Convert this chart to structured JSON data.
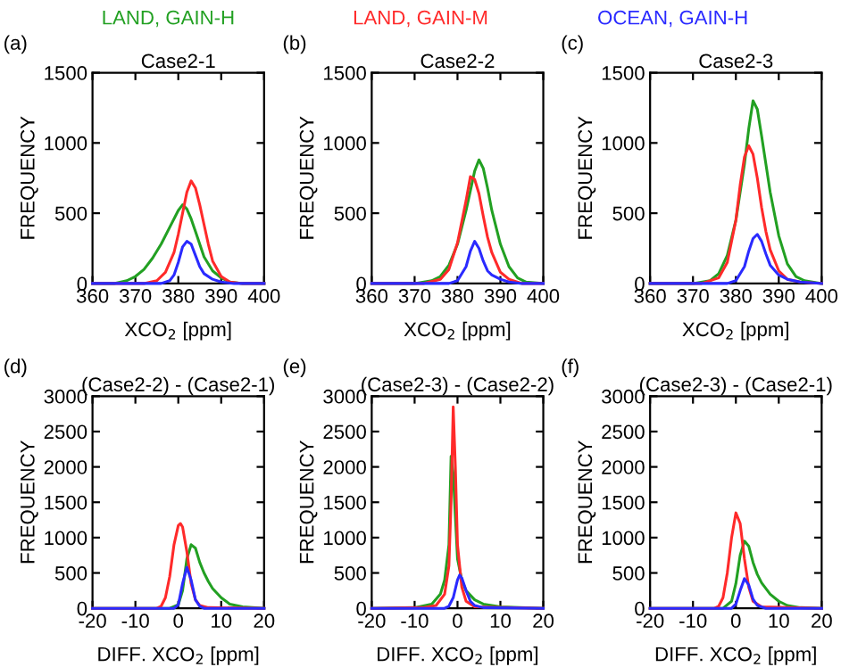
{
  "chart_data": [
    {
      "type": "line",
      "title": "Case2-1",
      "xlabel": "XCO$_{2}$ [ppm]",
      "ylabel": "FREQUENCY",
      "annotations": [
        "(a)"
      ],
      "legend": "top",
      "xlim": [
        360,
        400
      ],
      "ylim": [
        0,
        1500
      ],
      "xticks": [
        360,
        370,
        380,
        390,
        400
      ],
      "yticks": [
        0,
        500,
        1000,
        1500
      ],
      "grid": false,
      "series": [
        {
          "name": "LAND, GAIN-H",
          "color": "#22a022",
          "x": [
            360,
            365,
            368,
            370,
            372,
            374,
            376,
            378,
            380,
            381,
            382,
            383,
            384,
            385,
            386,
            388,
            390,
            392,
            395,
            400
          ],
          "values": [
            0,
            0,
            20,
            50,
            100,
            180,
            280,
            400,
            520,
            560,
            530,
            460,
            370,
            280,
            190,
            90,
            40,
            10,
            0,
            0
          ]
        },
        {
          "name": "LAND, GAIN-M",
          "color": "#ff2a2a",
          "x": [
            360,
            372,
            375,
            377,
            379,
            380,
            381,
            382,
            383,
            384,
            385,
            386,
            387,
            388,
            390,
            392,
            395,
            400
          ],
          "values": [
            0,
            0,
            20,
            80,
            220,
            350,
            500,
            650,
            730,
            680,
            560,
            420,
            280,
            160,
            50,
            10,
            0,
            0
          ]
        },
        {
          "name": "OCEAN, GAIN-H",
          "color": "#2a2aff",
          "x": [
            360,
            376,
            378,
            379,
            380,
            381,
            382,
            383,
            384,
            385,
            386,
            388,
            390,
            393,
            400
          ],
          "values": [
            0,
            0,
            20,
            60,
            150,
            260,
            300,
            280,
            200,
            120,
            70,
            30,
            10,
            0,
            0
          ]
        }
      ]
    },
    {
      "type": "line",
      "title": "Case2-2",
      "xlabel": "XCO$_{2}$ [ppm]",
      "ylabel": "FREQUENCY",
      "annotations": [
        "(b)"
      ],
      "xlim": [
        360,
        400
      ],
      "ylim": [
        0,
        1500
      ],
      "xticks": [
        360,
        370,
        380,
        390,
        400
      ],
      "yticks": [
        0,
        500,
        1000,
        1500
      ],
      "grid": false,
      "series": [
        {
          "color": "#22a022",
          "x": [
            360,
            370,
            374,
            376,
            378,
            380,
            382,
            384,
            385,
            386,
            387,
            388,
            390,
            392,
            394,
            396,
            400
          ],
          "values": [
            0,
            0,
            20,
            50,
            130,
            280,
            520,
            800,
            880,
            820,
            680,
            520,
            280,
            120,
            40,
            10,
            0
          ]
        },
        {
          "color": "#ff2a2a",
          "x": [
            360,
            372,
            376,
            378,
            380,
            382,
            383,
            384,
            385,
            386,
            387,
            388,
            390,
            392,
            395,
            400
          ],
          "values": [
            0,
            0,
            30,
            100,
            290,
            590,
            760,
            740,
            640,
            480,
            330,
            220,
            80,
            30,
            0,
            0
          ]
        },
        {
          "color": "#2a2aff",
          "x": [
            360,
            378,
            380,
            382,
            383,
            384,
            385,
            386,
            387,
            388,
            390,
            392,
            395,
            400
          ],
          "values": [
            0,
            0,
            20,
            120,
            230,
            300,
            250,
            160,
            90,
            60,
            30,
            10,
            0,
            0
          ]
        }
      ]
    },
    {
      "type": "line",
      "title": "Case2-3",
      "xlabel": "XCO$_{2}$ [ppm]",
      "ylabel": "FREQUENCY",
      "annotations": [
        "(c)"
      ],
      "xlim": [
        360,
        400
      ],
      "ylim": [
        0,
        1500
      ],
      "xticks": [
        360,
        370,
        380,
        390,
        400
      ],
      "yticks": [
        0,
        500,
        1000,
        1500
      ],
      "grid": false,
      "series": [
        {
          "color": "#22a022",
          "x": [
            360,
            370,
            374,
            376,
            378,
            380,
            382,
            383,
            384,
            385,
            386,
            387,
            388,
            390,
            392,
            394,
            396,
            400
          ],
          "values": [
            0,
            0,
            20,
            70,
            200,
            450,
            850,
            1100,
            1300,
            1240,
            1050,
            850,
            650,
            340,
            140,
            50,
            20,
            0
          ]
        },
        {
          "color": "#ff2a2a",
          "x": [
            360,
            372,
            376,
            378,
            380,
            381,
            382,
            383,
            384,
            385,
            386,
            387,
            388,
            390,
            392,
            395,
            400
          ],
          "values": [
            0,
            0,
            40,
            150,
            450,
            700,
            900,
            980,
            920,
            750,
            540,
            370,
            240,
            90,
            30,
            10,
            0
          ]
        },
        {
          "color": "#2a2aff",
          "x": [
            360,
            378,
            380,
            382,
            383,
            384,
            385,
            386,
            387,
            388,
            390,
            392,
            395,
            400
          ],
          "values": [
            0,
            0,
            20,
            120,
            230,
            320,
            350,
            300,
            210,
            130,
            60,
            30,
            10,
            0
          ]
        }
      ]
    },
    {
      "type": "line",
      "title": "(Case2-2) - (Case2-1)",
      "xlabel": "DIFF. XCO$_{2}$ [ppm]",
      "ylabel": "FREQUENCY",
      "annotations": [
        "(d)"
      ],
      "xlim": [
        -20,
        20
      ],
      "ylim": [
        0,
        3000
      ],
      "xticks": [
        -20,
        -10,
        0,
        10,
        20
      ],
      "yticks": [
        0,
        500,
        1000,
        1500,
        2000,
        2500,
        3000
      ],
      "grid": false,
      "series": [
        {
          "color": "#22a022",
          "x": [
            -20,
            -2,
            0,
            1,
            2,
            3,
            4,
            5,
            6,
            7,
            8,
            10,
            12,
            15,
            20
          ],
          "values": [
            0,
            0,
            50,
            250,
            700,
            900,
            850,
            650,
            500,
            380,
            280,
            150,
            60,
            20,
            0
          ]
        },
        {
          "color": "#ff2a2a",
          "x": [
            -20,
            -5,
            -4,
            -3,
            -2,
            -1,
            0,
            0.5,
            1,
            2,
            3,
            4,
            5,
            7,
            20
          ],
          "values": [
            0,
            0,
            30,
            150,
            450,
            900,
            1170,
            1200,
            1150,
            800,
            350,
            120,
            40,
            10,
            0
          ]
        },
        {
          "color": "#2a2aff",
          "x": [
            -20,
            -1,
            0,
            1,
            2,
            3,
            4,
            5,
            6,
            20
          ],
          "values": [
            0,
            0,
            50,
            350,
            580,
            400,
            120,
            30,
            0,
            0
          ]
        }
      ]
    },
    {
      "type": "line",
      "title": "(Case2-3) - (Case2-2)",
      "xlabel": "DIFF. XCO$_{2}$ [ppm]",
      "ylabel": "FREQUENCY",
      "annotations": [
        "(e)"
      ],
      "xlim": [
        -20,
        20
      ],
      "ylim": [
        0,
        3000
      ],
      "xticks": [
        -20,
        -10,
        0,
        10,
        20
      ],
      "yticks": [
        0,
        500,
        1000,
        1500,
        2000,
        2500,
        3000
      ],
      "grid": false,
      "series": [
        {
          "color": "#22a022",
          "x": [
            -20,
            -10,
            -6,
            -4,
            -3,
            -2,
            -1.5,
            -1,
            0,
            1,
            2,
            4,
            6,
            10,
            20
          ],
          "values": [
            0,
            10,
            60,
            200,
            400,
            900,
            2150,
            1900,
            700,
            400,
            250,
            120,
            60,
            20,
            0
          ]
        },
        {
          "color": "#ff2a2a",
          "x": [
            -20,
            -8,
            -5,
            -3,
            -2,
            -1.5,
            -1,
            -0.5,
            0,
            1,
            2,
            4,
            20
          ],
          "values": [
            0,
            10,
            40,
            200,
            600,
            1500,
            2850,
            2000,
            900,
            300,
            100,
            20,
            0
          ]
        },
        {
          "color": "#2a2aff",
          "x": [
            -20,
            -3,
            -2,
            -1,
            0,
            0.5,
            1,
            2,
            3,
            4,
            6,
            20
          ],
          "values": [
            0,
            0,
            30,
            150,
            400,
            470,
            430,
            250,
            100,
            40,
            10,
            0
          ]
        }
      ]
    },
    {
      "type": "line",
      "title": "(Case2-3) - (Case2-1)",
      "xlabel": "DIFF. XCO$_{2}$ [ppm]",
      "ylabel": "FREQUENCY",
      "annotations": [
        "(f)"
      ],
      "xlim": [
        -20,
        20
      ],
      "ylim": [
        0,
        3000
      ],
      "xticks": [
        -20,
        -10,
        0,
        10,
        20
      ],
      "yticks": [
        0,
        500,
        1000,
        1500,
        2000,
        2500,
        3000
      ],
      "grid": false,
      "series": [
        {
          "color": "#22a022",
          "x": [
            -20,
            -3,
            -1,
            0,
            1,
            2,
            3,
            4,
            5,
            6,
            8,
            10,
            12,
            15,
            20
          ],
          "values": [
            0,
            0,
            100,
            350,
            750,
            950,
            880,
            650,
            480,
            360,
            200,
            100,
            40,
            10,
            0
          ]
        },
        {
          "color": "#ff2a2a",
          "x": [
            -20,
            -5,
            -4,
            -3,
            -2,
            -1,
            0,
            1,
            2,
            3,
            4,
            6,
            20
          ],
          "values": [
            0,
            0,
            30,
            150,
            500,
            1000,
            1350,
            1200,
            700,
            300,
            100,
            20,
            0
          ]
        },
        {
          "color": "#2a2aff",
          "x": [
            -20,
            -1,
            0,
            1,
            2,
            3,
            4,
            5,
            7,
            20
          ],
          "values": [
            0,
            0,
            60,
            250,
            420,
            330,
            130,
            40,
            0,
            0
          ]
        }
      ]
    }
  ]
}
